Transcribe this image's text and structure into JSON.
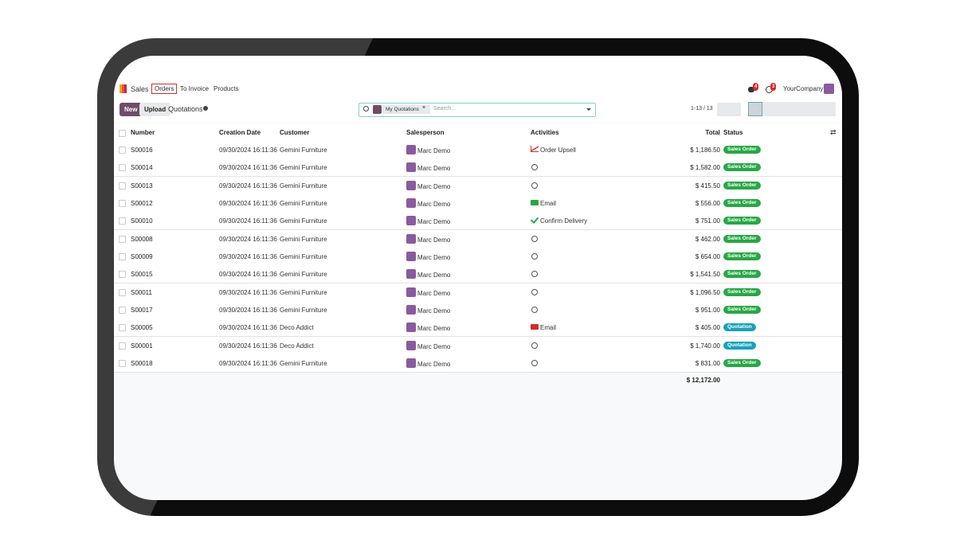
{
  "nav": {
    "app": "Sales",
    "items": [
      "Orders",
      "To Invoice",
      "Products"
    ],
    "badges": [
      "4",
      "3"
    ],
    "company": "YourCompany"
  },
  "control": {
    "new": "New",
    "upload": "Upload",
    "view": "Quotations",
    "facet": "My Quotations",
    "search_placeholder": "Search...",
    "pager": "1-13 / 13"
  },
  "table": {
    "columns": [
      "Number",
      "Creation Date",
      "Customer",
      "Salesperson",
      "Activities",
      "Total",
      "Status"
    ],
    "rows": [
      {
        "number": "S00016",
        "date": "09/30/2024 16:11:36",
        "customer": "Gemini Furniture",
        "salesperson": "Marc Demo",
        "activity": "Order Upsell",
        "total": "$ 1,186.50",
        "status": "Sales Order"
      },
      {
        "number": "S00014",
        "date": "09/30/2024 16:11:36",
        "customer": "Gemini Furniture",
        "salesperson": "Marc Demo",
        "total": "$ 1,582.00",
        "status": "Sales Order"
      },
      {
        "number": "S00013",
        "date": "09/30/2024 16:11:36",
        "customer": "Gemini Furniture",
        "salesperson": "Marc Demo",
        "total": "$ 415.50",
        "status": "Sales Order"
      },
      {
        "number": "S00012",
        "date": "09/30/2024 16:11:36",
        "customer": "Gemini Furniture",
        "salesperson": "Marc Demo",
        "activity": "Email",
        "total": "$ 556.00",
        "status": "Sales Order"
      },
      {
        "number": "S00010",
        "date": "09/30/2024 16:11:36",
        "customer": "Gemini Furniture",
        "salesperson": "Marc Demo",
        "activity": "Confirm Delivery",
        "total": "$ 751.00",
        "status": "Sales Order"
      },
      {
        "number": "S00008",
        "date": "09/30/2024 16:11:36",
        "customer": "Gemini Furniture",
        "salesperson": "Marc Demo",
        "total": "$ 462.00",
        "status": "Sales Order"
      },
      {
        "number": "S00009",
        "date": "09/30/2024 16:11:36",
        "customer": "Gemini Furniture",
        "salesperson": "Marc Demo",
        "total": "$ 654.00",
        "status": "Sales Order"
      },
      {
        "number": "S00015",
        "date": "09/30/2024 16:11:36",
        "customer": "Gemini Furniture",
        "salesperson": "Marc Demo",
        "total": "$ 1,541.50",
        "status": "Sales Order"
      },
      {
        "number": "S00011",
        "date": "09/30/2024 16:11:36",
        "customer": "Gemini Furniture",
        "salesperson": "Marc Demo",
        "total": "$ 1,096.50",
        "status": "Sales Order"
      },
      {
        "number": "S00017",
        "date": "09/30/2024 16:11:36",
        "customer": "Gemini Furniture",
        "salesperson": "Marc Demo",
        "total": "$ 951.00",
        "status": "Sales Order"
      },
      {
        "number": "S00005",
        "date": "09/30/2024 16:11:36",
        "customer": "Deco Addict",
        "salesperson": "Marc Demo",
        "activity": "Email",
        "total": "$ 405.00",
        "status": "Quotation"
      },
      {
        "number": "S00001",
        "date": "09/30/2024 16:11:36",
        "customer": "Deco Addict",
        "salesperson": "Marc Demo",
        "total": "$ 1,740.00",
        "status": "Quotation"
      },
      {
        "number": "S00018",
        "date": "09/30/2024 16:11:36",
        "customer": "Gemini Furniture",
        "salesperson": "Marc Demo",
        "total": "$ 831.00",
        "status": "Sales Order"
      }
    ],
    "total": "$ 12,172.00"
  }
}
